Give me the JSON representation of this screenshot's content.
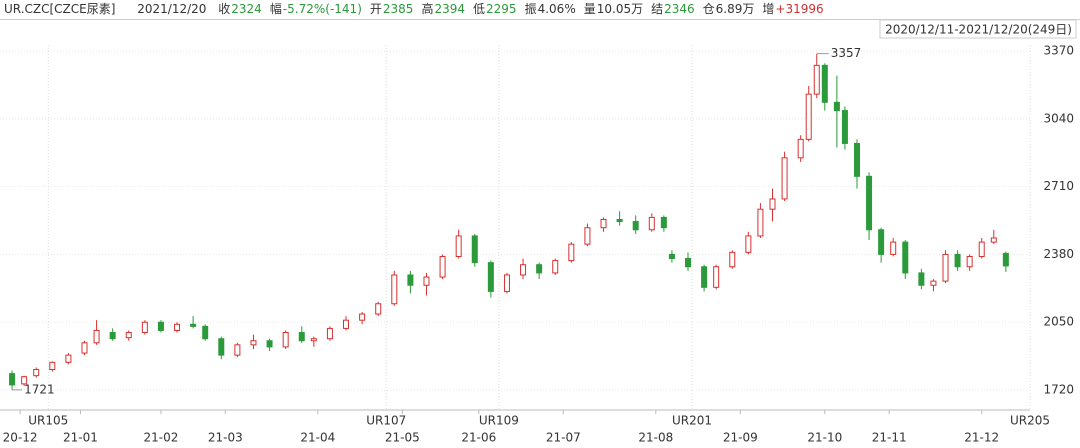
{
  "header": {
    "symbol": "UR.CZC[CZCE尿素]",
    "date": "2021/12/20",
    "fields": [
      {
        "label": "收",
        "value": "2324",
        "color": "#2a9a3a"
      },
      {
        "label": "幅",
        "value": "-5.72%(-141)",
        "color": "#2a9a3a"
      },
      {
        "label": "开",
        "value": "2385",
        "color": "#2a9a3a"
      },
      {
        "label": "高",
        "value": "2394",
        "color": "#2a9a3a"
      },
      {
        "label": "低",
        "value": "2295",
        "color": "#2a9a3a"
      },
      {
        "label": "振",
        "value": "4.06%",
        "color": "#333333"
      },
      {
        "label": "量",
        "value": "10.05万",
        "color": "#333333"
      },
      {
        "label": "结",
        "value": "2346",
        "color": "#2a9a3a"
      },
      {
        "label": "仓",
        "value": "6.89万",
        "color": "#333333"
      },
      {
        "label": "增",
        "value": "+31996",
        "color": "#d03030"
      }
    ]
  },
  "chart_data": {
    "type": "candlestick",
    "range_label": "2020/12/11-2021/12/20(249日)",
    "up_color": "#d83030",
    "down_color": "#2a9a3a",
    "grid": true,
    "x": [
      1,
      4,
      7,
      11,
      15,
      19,
      22,
      26,
      30,
      34,
      38,
      42,
      46,
      49,
      53,
      57,
      61,
      65,
      69,
      73,
      76,
      80,
      84,
      88,
      92,
      96,
      100,
      104,
      108,
      112,
      116,
      120,
      124,
      128,
      132,
      136,
      140,
      144,
      148,
      152,
      156,
      160,
      163,
      165,
      169,
      173,
      176,
      180,
      184,
      187,
      190,
      193,
      197,
      199,
      201,
      203,
      206,
      208,
      211,
      214,
      217,
      220,
      223,
      227,
      230,
      233,
      236,
      239,
      242,
      245,
      248
    ],
    "open": [
      1800,
      1750,
      1790,
      1820,
      1855,
      1900,
      1950,
      2000,
      1975,
      2000,
      2050,
      2010,
      2040,
      2030,
      1970,
      1890,
      1940,
      1960,
      1930,
      2000,
      1960,
      1970,
      2020,
      2060,
      2090,
      2140,
      2280,
      2230,
      2270,
      2370,
      2470,
      2340,
      2200,
      2280,
      2330,
      2290,
      2350,
      2430,
      2510,
      2550,
      2540,
      2500,
      2560,
      2380,
      2360,
      2320,
      2220,
      2320,
      2390,
      2470,
      2600,
      2650,
      2850,
      2940,
      3160,
      3300,
      3120,
      3080,
      2920,
      2760,
      2500,
      2380,
      2440,
      2290,
      2230,
      2250,
      2380,
      2320,
      2370,
      2440,
      2385
    ],
    "high": [
      1815,
      1790,
      1830,
      1860,
      1900,
      1960,
      2060,
      2020,
      2010,
      2060,
      2060,
      2050,
      2080,
      2040,
      1980,
      1950,
      1990,
      1970,
      2010,
      2030,
      1980,
      2030,
      2080,
      2100,
      2150,
      2300,
      2300,
      2290,
      2380,
      2500,
      2480,
      2350,
      2290,
      2360,
      2340,
      2360,
      2440,
      2530,
      2560,
      2590,
      2570,
      2580,
      2570,
      2400,
      2390,
      2330,
      2330,
      2400,
      2490,
      2630,
      2700,
      2880,
      2960,
      3200,
      3357,
      3310,
      3250,
      3100,
      2940,
      2780,
      2510,
      2460,
      2450,
      2310,
      2260,
      2400,
      2400,
      2380,
      2460,
      2500,
      2394
    ],
    "low": [
      1721,
      1740,
      1780,
      1810,
      1845,
      1890,
      1940,
      1960,
      1960,
      1990,
      2000,
      2000,
      2020,
      1960,
      1870,
      1880,
      1920,
      1910,
      1920,
      1950,
      1930,
      1960,
      2010,
      2040,
      2080,
      2130,
      2190,
      2180,
      2260,
      2360,
      2320,
      2170,
      2190,
      2260,
      2260,
      2280,
      2340,
      2420,
      2490,
      2520,
      2480,
      2490,
      2490,
      2340,
      2300,
      2200,
      2210,
      2310,
      2380,
      2460,
      2540,
      2640,
      2830,
      2930,
      3140,
      3080,
      2900,
      2890,
      2700,
      2450,
      2340,
      2370,
      2260,
      2210,
      2200,
      2240,
      2300,
      2300,
      2360,
      2430,
      2295
    ],
    "close": [
      1745,
      1785,
      1820,
      1855,
      1890,
      1950,
      2010,
      1970,
      2000,
      2050,
      2010,
      2040,
      2030,
      1970,
      1890,
      1940,
      1960,
      1930,
      2000,
      1960,
      1970,
      2020,
      2060,
      2090,
      2140,
      2280,
      2230,
      2270,
      2370,
      2470,
      2340,
      2200,
      2280,
      2330,
      2290,
      2350,
      2430,
      2510,
      2550,
      2540,
      2500,
      2560,
      2510,
      2360,
      2320,
      2220,
      2320,
      2390,
      2470,
      2600,
      2650,
      2850,
      2940,
      3160,
      3300,
      3120,
      3080,
      2920,
      2760,
      2500,
      2380,
      2440,
      2290,
      2230,
      2250,
      2380,
      2320,
      2370,
      2440,
      2460,
      2324
    ],
    "max_label": 3357,
    "min_label": 1721,
    "xlim": [
      -2,
      254
    ],
    "ylim": [
      1623,
      3399
    ],
    "yticks": [
      1720,
      2050,
      2380,
      2710,
      3040,
      3370
    ],
    "xticks": [
      {
        "value": 3,
        "label": "20-12"
      },
      {
        "value": 18,
        "label": "21-01"
      },
      {
        "value": 38,
        "label": "21-02"
      },
      {
        "value": 54,
        "label": "21-03"
      },
      {
        "value": 77,
        "label": "21-04"
      },
      {
        "value": 98,
        "label": "21-05"
      },
      {
        "value": 117,
        "label": "21-06"
      },
      {
        "value": 138,
        "label": "21-07"
      },
      {
        "value": 161,
        "label": "21-08"
      },
      {
        "value": 182,
        "label": "21-09"
      },
      {
        "value": 203,
        "label": "21-10"
      },
      {
        "value": 219,
        "label": "21-11"
      },
      {
        "value": 242,
        "label": "21-12"
      }
    ],
    "contract_ticks": [
      {
        "value": 10,
        "label": "UR105"
      },
      {
        "value": 94,
        "label": "UR107"
      },
      {
        "value": 122,
        "label": "UR109"
      },
      {
        "value": 170,
        "label": "UR201"
      },
      {
        "value": 254,
        "label": "UR205"
      }
    ]
  }
}
